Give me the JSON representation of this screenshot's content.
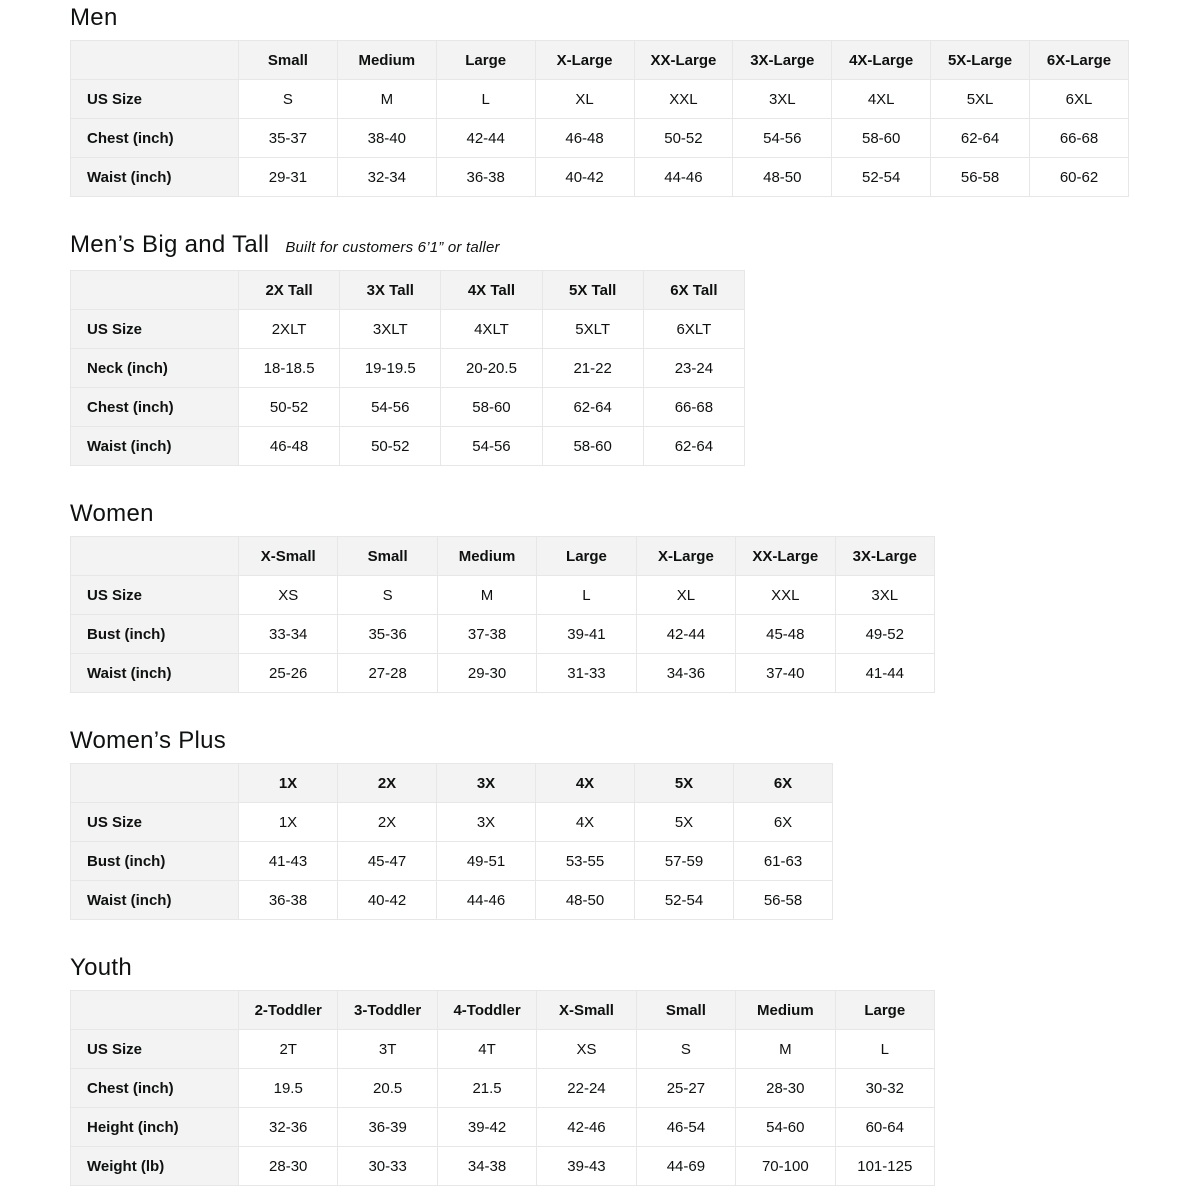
{
  "page": {
    "background_color": "#ffffff",
    "text_color": "#0f1111",
    "header_cell_color": "#f3f3f3",
    "border_color": "#e7e7e7"
  },
  "sections": [
    {
      "id": "men",
      "css": "t-men",
      "title": "Men",
      "subtitle": "",
      "columns": [
        "Small",
        "Medium",
        "Large",
        "X-Large",
        "XX-Large",
        "3X-Large",
        "4X-Large",
        "5X-Large",
        "6X-Large"
      ],
      "rows": [
        {
          "label": "US Size",
          "values": [
            "S",
            "M",
            "L",
            "XL",
            "XXL",
            "3XL",
            "4XL",
            "5XL",
            "6XL"
          ]
        },
        {
          "label": "Chest (inch)",
          "values": [
            "35-37",
            "38-40",
            "42-44",
            "46-48",
            "50-52",
            "54-56",
            "58-60",
            "62-64",
            "66-68"
          ]
        },
        {
          "label": "Waist (inch)",
          "values": [
            "29-31",
            "32-34",
            "36-38",
            "40-42",
            "44-46",
            "48-50",
            "52-54",
            "56-58",
            "60-62"
          ]
        }
      ]
    },
    {
      "id": "mens-big-and-tall",
      "css": "t-big-tall",
      "title": "Men’s Big and Tall",
      "subtitle": "Built for customers 6’1” or taller",
      "columns": [
        "2X Tall",
        "3X Tall",
        "4X Tall",
        "5X Tall",
        "6X Tall"
      ],
      "rows": [
        {
          "label": "US Size",
          "values": [
            "2XLT",
            "3XLT",
            "4XLT",
            "5XLT",
            "6XLT"
          ]
        },
        {
          "label": "Neck (inch)",
          "values": [
            "18-18.5",
            "19-19.5",
            "20-20.5",
            "21-22",
            "23-24"
          ]
        },
        {
          "label": "Chest (inch)",
          "values": [
            "50-52",
            "54-56",
            "58-60",
            "62-64",
            "66-68"
          ]
        },
        {
          "label": "Waist (inch)",
          "values": [
            "46-48",
            "50-52",
            "54-56",
            "58-60",
            "62-64"
          ]
        }
      ]
    },
    {
      "id": "women",
      "css": "t-women",
      "title": "Women",
      "subtitle": "",
      "columns": [
        "X-Small",
        "Small",
        "Medium",
        "Large",
        "X-Large",
        "XX-Large",
        "3X-Large"
      ],
      "rows": [
        {
          "label": "US Size",
          "values": [
            "XS",
            "S",
            "M",
            "L",
            "XL",
            "XXL",
            "3XL"
          ]
        },
        {
          "label": "Bust (inch)",
          "values": [
            "33-34",
            "35-36",
            "37-38",
            "39-41",
            "42-44",
            "45-48",
            "49-52"
          ]
        },
        {
          "label": "Waist (inch)",
          "values": [
            "25-26",
            "27-28",
            "29-30",
            "31-33",
            "34-36",
            "37-40",
            "41-44"
          ]
        }
      ]
    },
    {
      "id": "womens-plus",
      "css": "t-womens-plus",
      "title": "Women’s  Plus",
      "subtitle": "",
      "columns": [
        "1X",
        "2X",
        "3X",
        "4X",
        "5X",
        "6X"
      ],
      "rows": [
        {
          "label": "US Size",
          "values": [
            "1X",
            "2X",
            "3X",
            "4X",
            "5X",
            "6X"
          ]
        },
        {
          "label": "Bust (inch)",
          "values": [
            "41-43",
            "45-47",
            "49-51",
            "53-55",
            "57-59",
            "61-63"
          ]
        },
        {
          "label": "Waist (inch)",
          "values": [
            "36-38",
            "40-42",
            "44-46",
            "48-50",
            "52-54",
            "56-58"
          ]
        }
      ]
    },
    {
      "id": "youth",
      "css": "t-youth",
      "title": "Youth",
      "subtitle": "",
      "columns": [
        "2-Toddler",
        "3-Toddler",
        "4-Toddler",
        "X-Small",
        "Small",
        "Medium",
        "Large"
      ],
      "rows": [
        {
          "label": "US Size",
          "values": [
            "2T",
            "3T",
            "4T",
            "XS",
            "S",
            "M",
            "L"
          ]
        },
        {
          "label": "Chest (inch)",
          "values": [
            "19.5",
            "20.5",
            "21.5",
            "22-24",
            "25-27",
            "28-30",
            "30-32"
          ]
        },
        {
          "label": "Height (inch)",
          "values": [
            "32-36",
            "36-39",
            "39-42",
            "42-46",
            "46-54",
            "54-60",
            "60-64"
          ]
        },
        {
          "label": "Weight (lb)",
          "values": [
            "28-30",
            "30-33",
            "34-38",
            "39-43",
            "44-69",
            "70-100",
            "101-125"
          ]
        }
      ]
    }
  ]
}
